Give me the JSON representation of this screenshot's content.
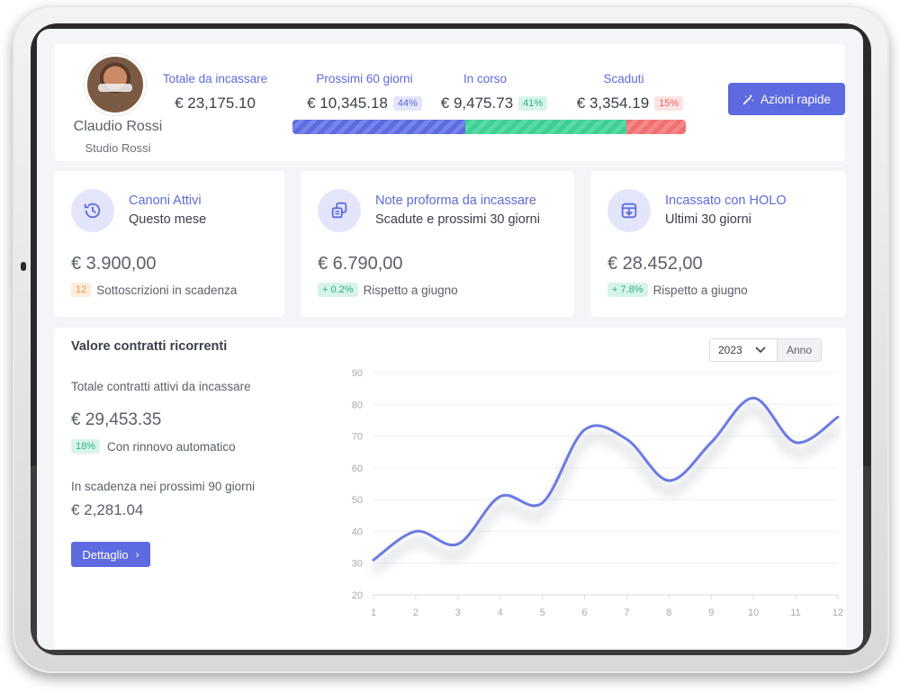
{
  "profile": {
    "name": "Claudio Rossi",
    "company": "Studio Rossi"
  },
  "summary": {
    "stats": [
      {
        "label": "Totale da incassare",
        "value": "€ 23,175.10",
        "badge": ""
      },
      {
        "label": "Prossimi 60 giorni",
        "value": "€ 10,345.18",
        "badge": "44%"
      },
      {
        "label": "In corso",
        "value": "€ 9,475.73",
        "badge": "41%"
      },
      {
        "label": "Scaduti",
        "value": "€ 3,354.19",
        "badge": "15%"
      }
    ],
    "bar_shares": [
      44,
      41,
      15
    ],
    "quick_actions_label": "Azioni rapide"
  },
  "kpis": [
    {
      "title": "Canoni Attivi",
      "subtitle": "Questo mese",
      "value": "€ 3.900,00",
      "badge": "12",
      "note": "Sottoscrizioni in scadenza",
      "icon": "history-icon"
    },
    {
      "title": "Note proforma da incassare",
      "subtitle": "Scadute e prossimi 30 giorni",
      "value": "€ 6.790,00",
      "badge": "+ 0.2%",
      "note": "Rispetto a giugno",
      "icon": "documents-icon"
    },
    {
      "title": "Incassato con HOLO",
      "subtitle": "Ultimi 30 giorni",
      "value": "€ 28.452,00",
      "badge": "+ 7.8%",
      "note": "Rispetto a giugno",
      "icon": "inbox-download-icon"
    }
  ],
  "recurring": {
    "title": "Valore contratti ricorrenti",
    "total_label": "Totale contratti attivi da incassare",
    "total_value": "€ 29,453.35",
    "auto_badge": "18%",
    "auto_label": "Con rinnovo automatico",
    "expiring_label": "In scadenza nei prossimi 90 giorni",
    "expiring_value": "€ 2,281.04",
    "detail_label": "Dettaglio",
    "year_select": "2023",
    "period_label": "Anno"
  },
  "chart_data": {
    "type": "line",
    "x": [
      1,
      2,
      3,
      4,
      5,
      6,
      7,
      8,
      9,
      10,
      11,
      12
    ],
    "series": [
      {
        "values": [
          31,
          40,
          36,
          51,
          49,
          72,
          69,
          56,
          68,
          82,
          68,
          76
        ]
      }
    ],
    "ylim": [
      20,
      90
    ],
    "yticks": [
      20,
      30,
      40,
      50,
      60,
      70,
      80,
      90
    ],
    "xlabel": "",
    "ylabel": "",
    "grid": true,
    "color": "#6b7be0"
  },
  "colors": {
    "accent": "#5d6ae0",
    "green": "#3ecf95",
    "red": "#f07070"
  }
}
